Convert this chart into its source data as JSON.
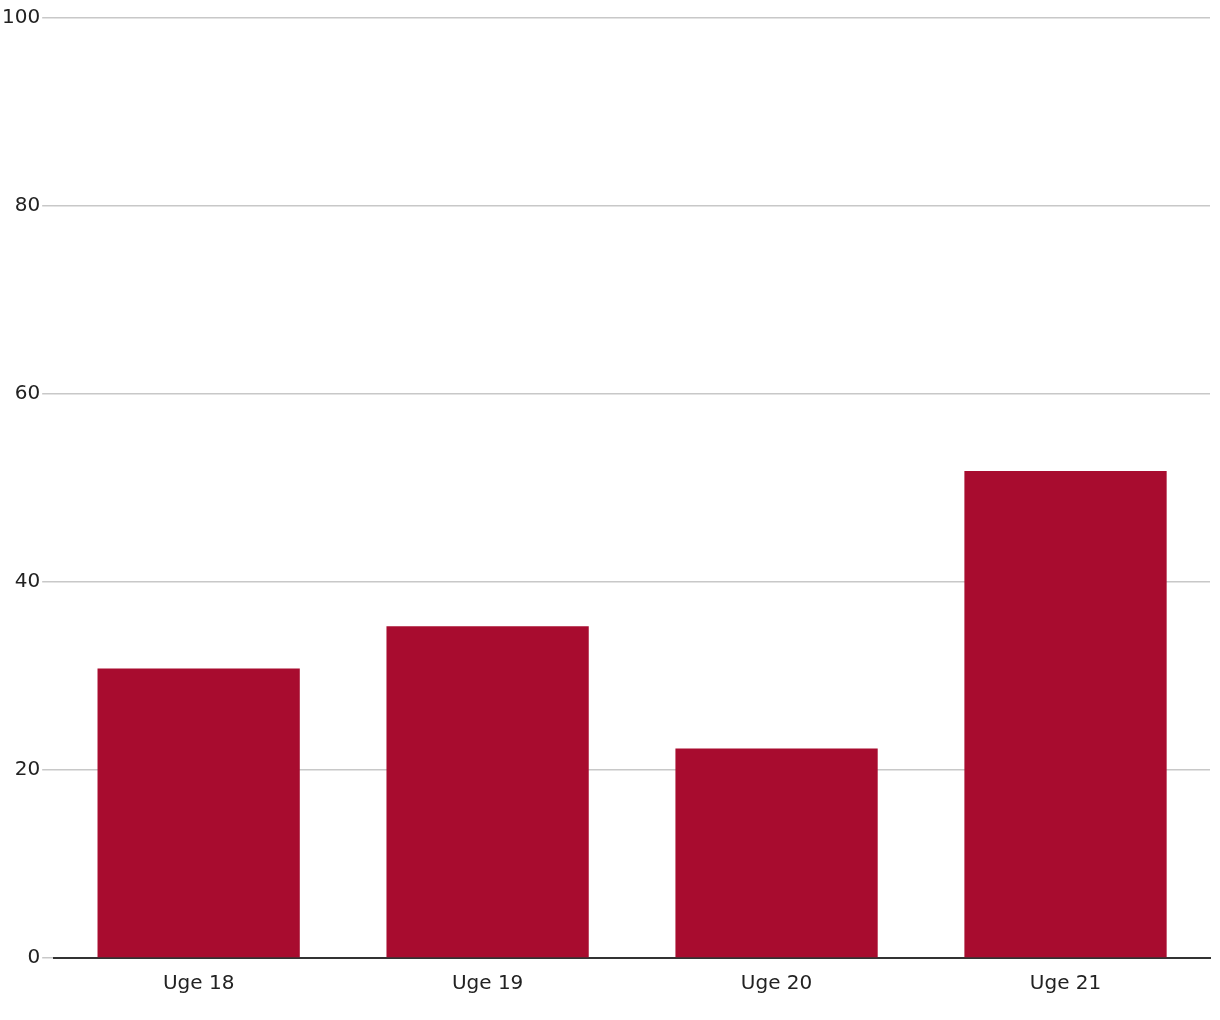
{
  "chart_data": {
    "type": "bar",
    "categories": [
      "Uge 18",
      "Uge 19",
      "Uge 20",
      "Uge 21"
    ],
    "values": [
      30.8,
      35.3,
      22.3,
      51.8
    ],
    "color": "#a80c2f",
    "ylim": [
      0,
      100
    ],
    "yticks": [
      0,
      20,
      40,
      60,
      80,
      100
    ],
    "grid": "y",
    "legend": false
  }
}
